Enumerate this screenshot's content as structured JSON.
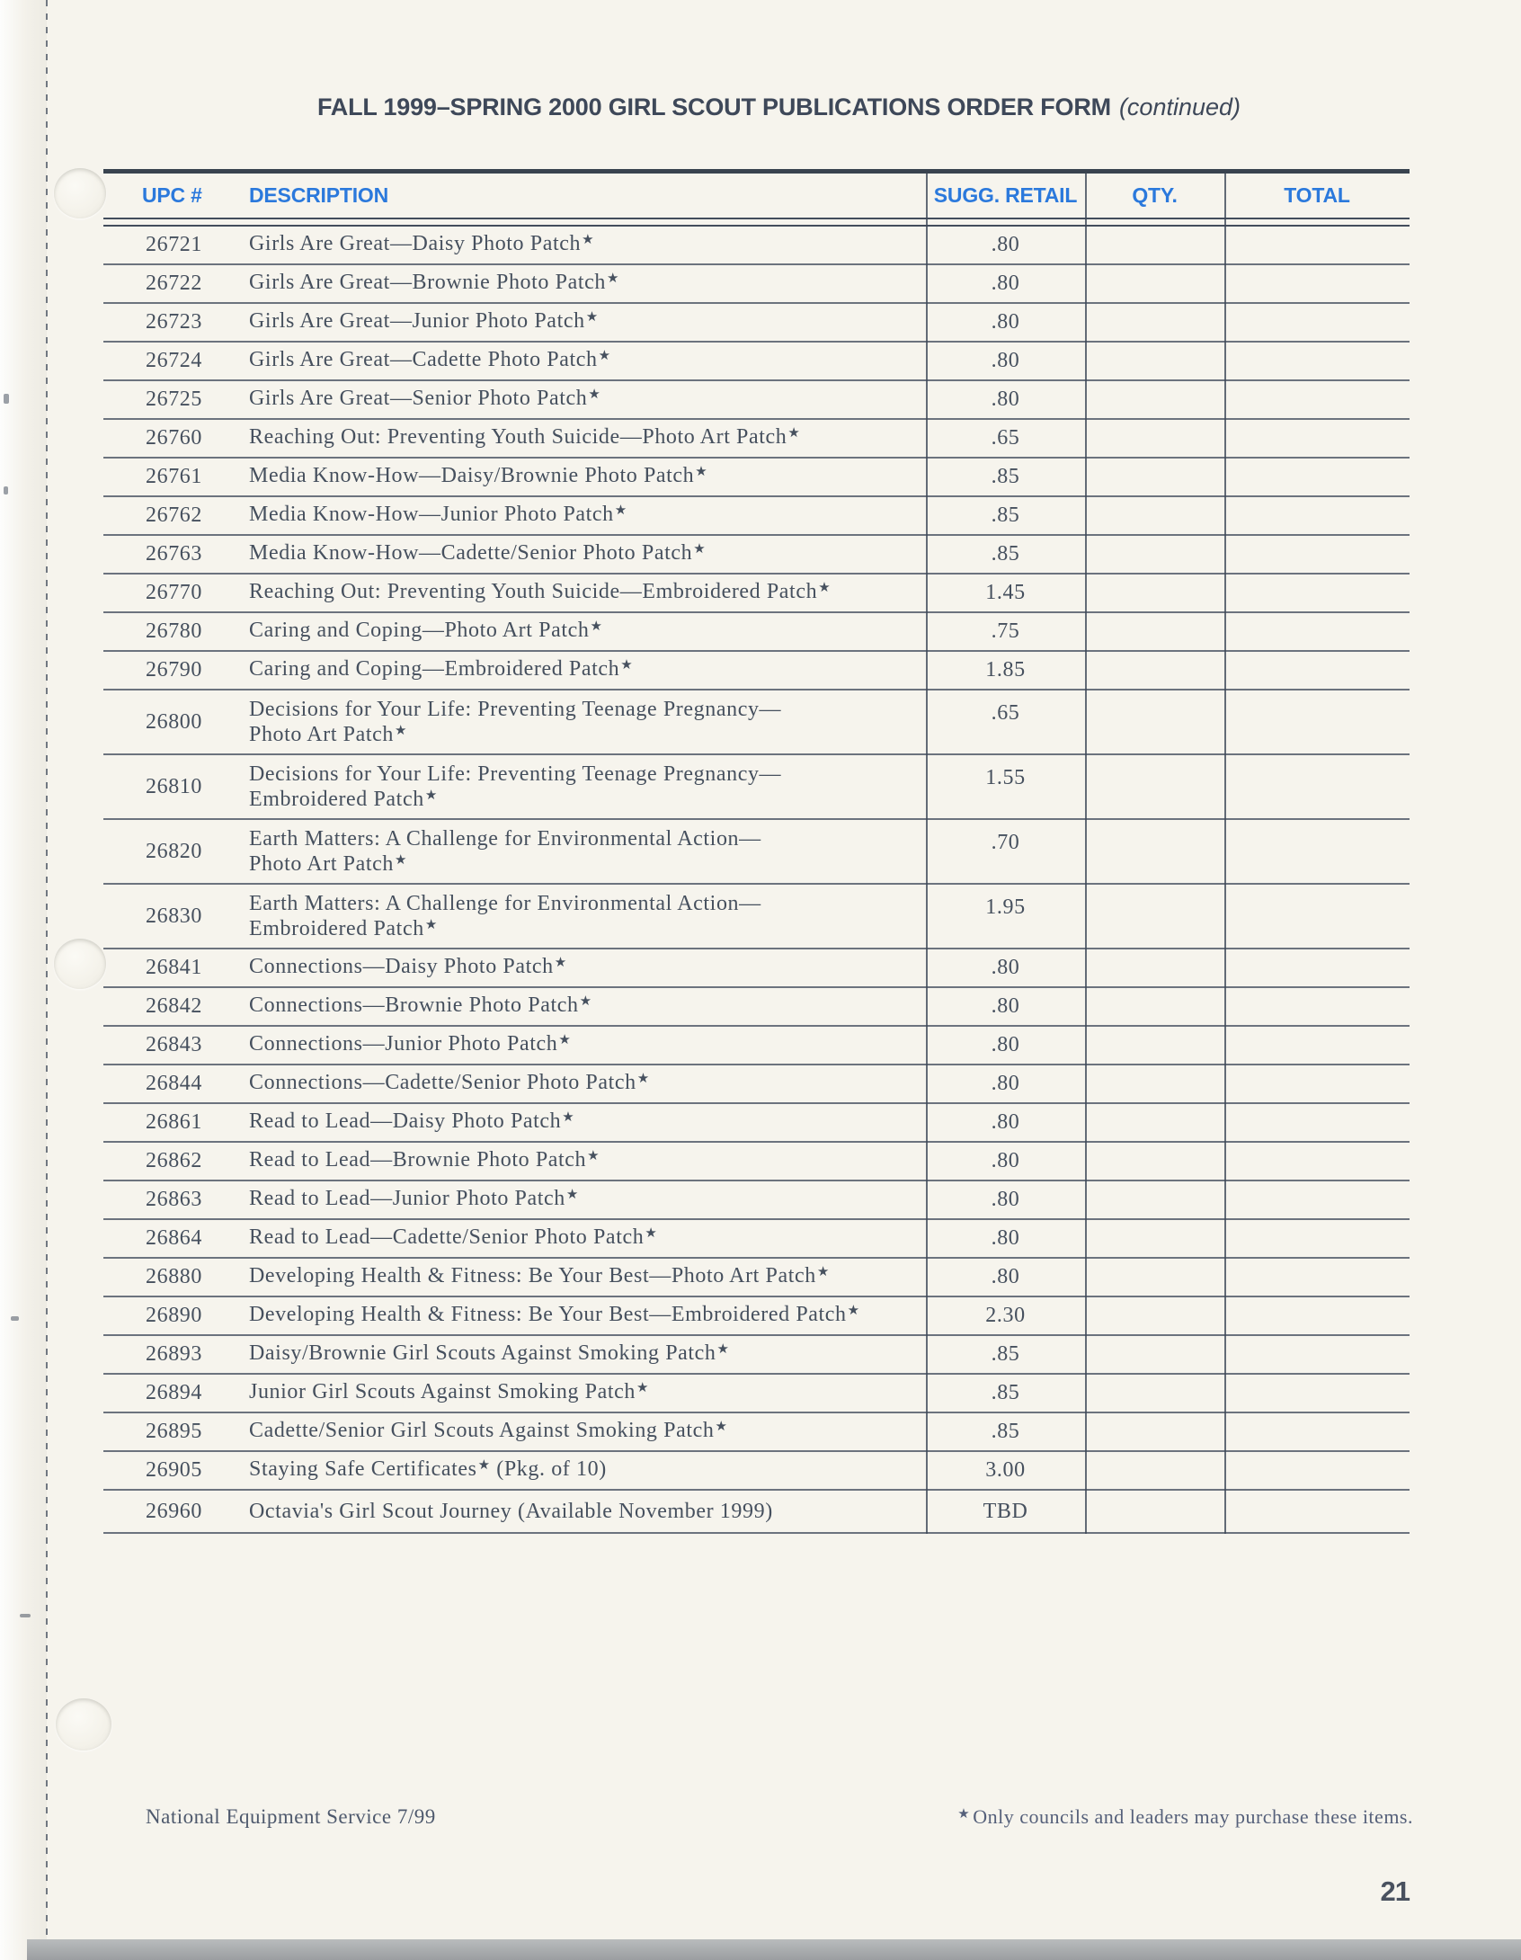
{
  "page": {
    "title": "FALL 1999–SPRING 2000 GIRL SCOUT PUBLICATIONS ORDER FORM",
    "title_suffix": "(continued)",
    "footer_left": "National Equipment Service 7/99",
    "footer_note_star": "★",
    "footer_note": "Only councils and leaders may purchase these items.",
    "page_number": "21"
  },
  "colors": {
    "header_blue": "#2b79dc",
    "body_ink": "#46505e",
    "title_ink": "#3e4859",
    "table_line": "#434d5c",
    "paper": "#f6f4ed"
  },
  "table": {
    "headers": [
      "UPC #",
      "DESCRIPTION",
      "SUGG. RETAIL",
      "QTY.",
      "TOTAL"
    ],
    "rows": [
      {
        "upc": "26721",
        "description": "Girls Are Great—Daisy Photo Patch★",
        "retail": ".80"
      },
      {
        "upc": "26722",
        "description": "Girls Are Great—Brownie Photo Patch★",
        "retail": ".80"
      },
      {
        "upc": "26723",
        "description": "Girls Are Great—Junior Photo Patch★",
        "retail": ".80"
      },
      {
        "upc": "26724",
        "description": "Girls Are Great—Cadette Photo Patch★",
        "retail": ".80"
      },
      {
        "upc": "26725",
        "description": "Girls Are Great—Senior Photo Patch★",
        "retail": ".80"
      },
      {
        "upc": "26760",
        "description": "Reaching Out: Preventing Youth Suicide—Photo Art Patch★",
        "retail": ".65"
      },
      {
        "upc": "26761",
        "description": "Media Know-How—Daisy/Brownie Photo Patch★",
        "retail": ".85"
      },
      {
        "upc": "26762",
        "description": "Media Know-How—Junior Photo Patch★",
        "retail": ".85"
      },
      {
        "upc": "26763",
        "description": "Media Know-How—Cadette/Senior Photo Patch★",
        "retail": ".85"
      },
      {
        "upc": "26770",
        "description": "Reaching Out: Preventing Youth Suicide—Embroidered Patch★",
        "retail": "1.45"
      },
      {
        "upc": "26780",
        "description": "Caring and Coping—Photo Art Patch★",
        "retail": ".75"
      },
      {
        "upc": "26790",
        "description": "Caring and Coping—Embroidered Patch★",
        "retail": "1.85"
      },
      {
        "upc": "26800",
        "description": "Decisions for Your Life: Preventing Teenage Pregnancy—\nPhoto Art Patch★",
        "retail": ".65"
      },
      {
        "upc": "26810",
        "description": "Decisions for Your Life: Preventing Teenage Pregnancy—\nEmbroidered Patch★",
        "retail": "1.55"
      },
      {
        "upc": "26820",
        "description": "Earth Matters: A Challenge for Environmental Action—\nPhoto Art Patch★",
        "retail": ".70"
      },
      {
        "upc": "26830",
        "description": "Earth Matters: A Challenge for Environmental Action—\nEmbroidered Patch★",
        "retail": "1.95"
      },
      {
        "upc": "26841",
        "description": "Connections—Daisy Photo Patch★",
        "retail": ".80"
      },
      {
        "upc": "26842",
        "description": "Connections—Brownie Photo Patch★",
        "retail": ".80"
      },
      {
        "upc": "26843",
        "description": "Connections—Junior Photo Patch★",
        "retail": ".80"
      },
      {
        "upc": "26844",
        "description": "Connections—Cadette/Senior Photo Patch★",
        "retail": ".80"
      },
      {
        "upc": "26861",
        "description": "Read to Lead—Daisy Photo Patch★",
        "retail": ".80"
      },
      {
        "upc": "26862",
        "description": "Read to Lead—Brownie Photo Patch★",
        "retail": ".80"
      },
      {
        "upc": "26863",
        "description": "Read to Lead—Junior Photo Patch★",
        "retail": ".80"
      },
      {
        "upc": "26864",
        "description": "Read to Lead—Cadette/Senior Photo Patch★",
        "retail": ".80"
      },
      {
        "upc": "26880",
        "description": "Developing Health & Fitness: Be Your Best—Photo Art Patch★",
        "retail": ".80"
      },
      {
        "upc": "26890",
        "description": "Developing Health & Fitness: Be Your Best—Embroidered Patch★",
        "retail": "2.30"
      },
      {
        "upc": "26893",
        "description": "Daisy/Brownie Girl Scouts Against Smoking Patch★",
        "retail": ".85"
      },
      {
        "upc": "26894",
        "description": "Junior Girl Scouts Against Smoking Patch★",
        "retail": ".85"
      },
      {
        "upc": "26895",
        "description": "Cadette/Senior Girl Scouts Against Smoking Patch★",
        "retail": ".85"
      },
      {
        "upc": "26905",
        "description": "Staying Safe Certificates★ (Pkg. of 10)",
        "retail": "3.00"
      },
      {
        "upc": "26960",
        "description": "Octavia's Girl Scout Journey (Available November 1999)",
        "retail": "TBD"
      }
    ]
  }
}
